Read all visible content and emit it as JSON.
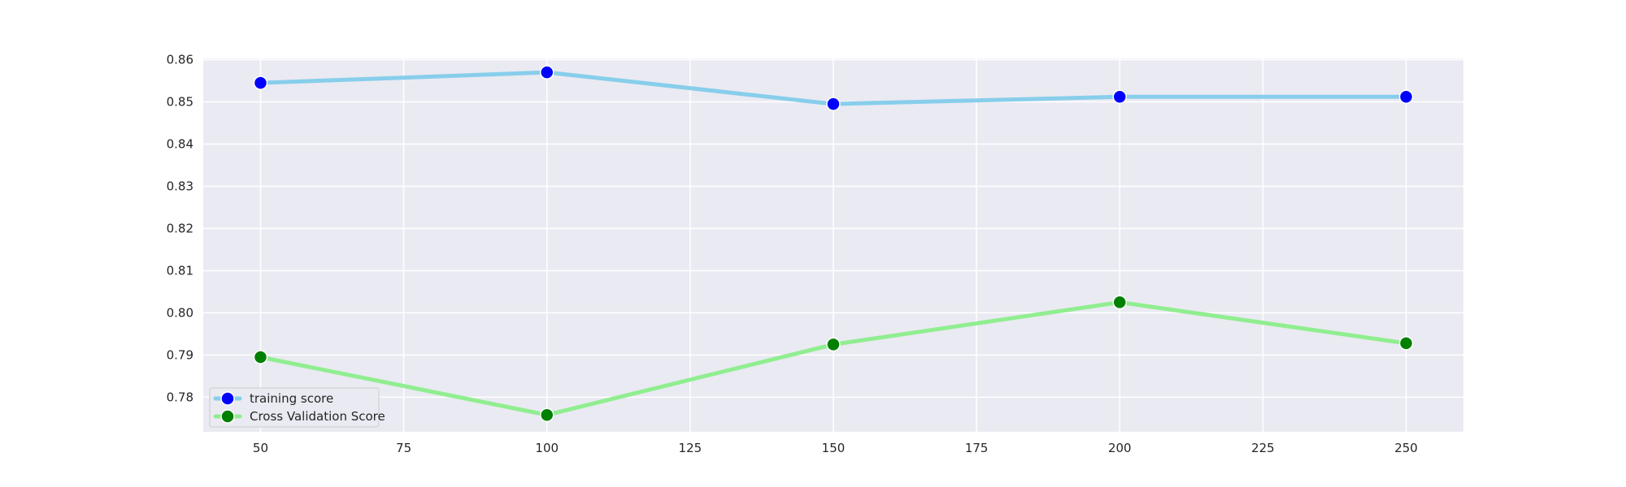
{
  "chart_data": {
    "type": "line",
    "title": "",
    "xlabel": "",
    "ylabel": "",
    "xlim": [
      40,
      260
    ],
    "ylim": [
      0.7718,
      0.8603
    ],
    "x_ticks": [
      50,
      75,
      100,
      125,
      150,
      175,
      200,
      225,
      250
    ],
    "y_ticks": [
      0.78,
      0.79,
      0.8,
      0.81,
      0.82,
      0.83,
      0.84,
      0.85,
      0.86
    ],
    "y_tick_format": 2,
    "grid": true,
    "legend_position": "lower-left",
    "background": "#eaeaf2",
    "series": [
      {
        "name": "training score",
        "line_color": "#87ceeb",
        "marker_color": "#0000ff",
        "x": [
          50,
          100,
          150,
          200,
          250
        ],
        "y": [
          0.8545,
          0.857,
          0.8495,
          0.8512,
          0.8512
        ]
      },
      {
        "name": "Cross Validation Score",
        "line_color": "#90ee90",
        "marker_color": "#008000",
        "x": [
          50,
          100,
          150,
          200,
          250
        ],
        "y": [
          0.7895,
          0.7758,
          0.7925,
          0.8025,
          0.7928
        ]
      }
    ]
  }
}
